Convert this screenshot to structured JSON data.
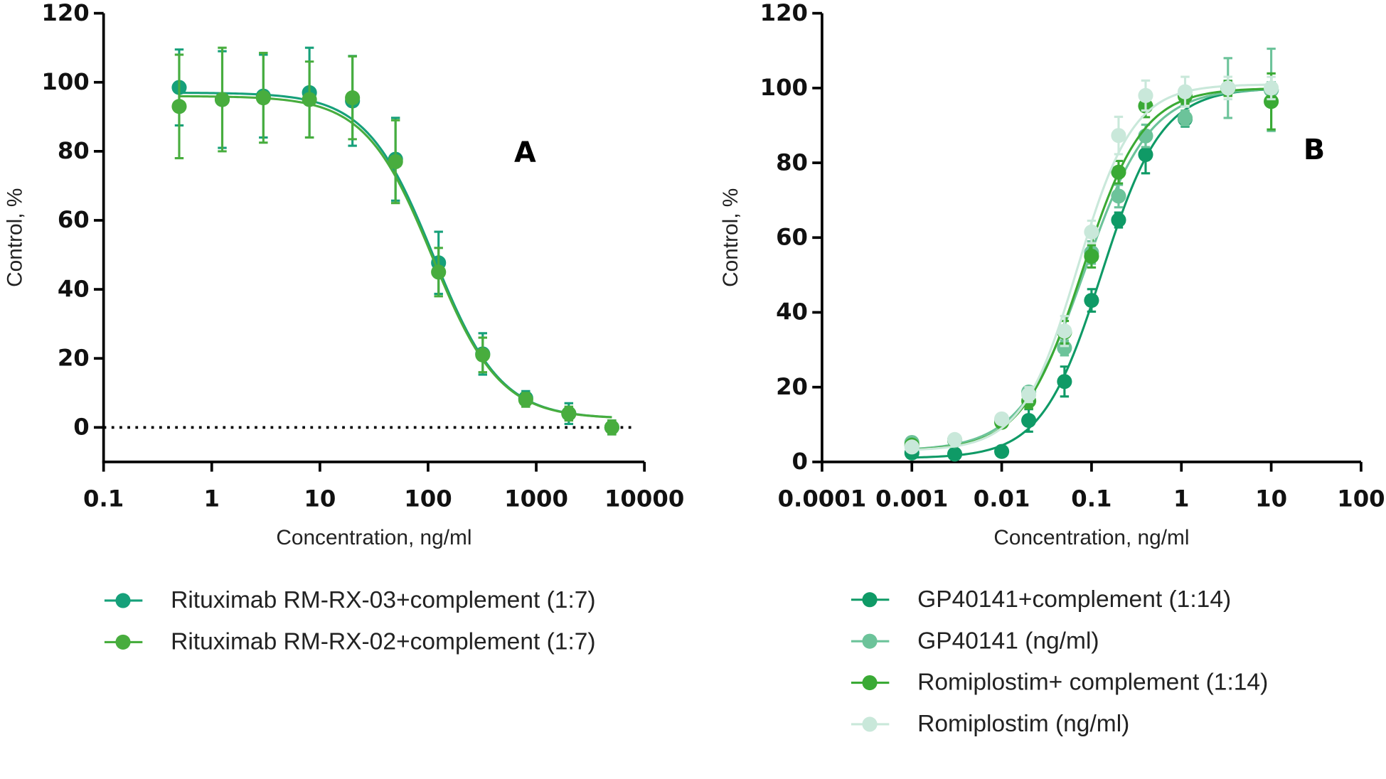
{
  "chart_data": [
    {
      "type": "scatter",
      "annotation": "A",
      "x_label": "Concentration, ng/ml",
      "y_label": "Control,  %",
      "xscale": "log",
      "xlim": [
        0.1,
        10000
      ],
      "xticks": [
        0.1,
        1,
        10,
        100,
        1000,
        10000
      ],
      "ylim": [
        -10,
        120
      ],
      "yticks": [
        0,
        20,
        40,
        60,
        80,
        100,
        120
      ],
      "reference_line": 0,
      "legend": "bottom",
      "x": [
        0.5,
        1.25,
        3,
        8,
        20,
        50,
        125,
        320,
        800,
        2000,
        5000
      ],
      "series": [
        {
          "name": "Rituximab RM-RX-03+complement (1:7)",
          "color": "#16a07a",
          "values": [
            98.5,
            95,
            96,
            97,
            94.6,
            77.7,
            47.7,
            21.3,
            8.5,
            4,
            0
          ],
          "errors": [
            11,
            14,
            12,
            13,
            13,
            12,
            9,
            6,
            2,
            3,
            2
          ],
          "fit": {
            "bottom": 2.5,
            "top": 97,
            "ec50": 112,
            "hill": 1.4
          }
        },
        {
          "name": "Rituximab RM-RX-02+complement (1:7)",
          "color": "#48ad3e",
          "values": [
            93,
            95,
            95.5,
            95,
            95.5,
            77,
            45,
            21,
            8,
            4,
            0
          ],
          "errors": [
            15,
            15,
            13,
            11,
            12,
            12,
            7,
            5,
            2,
            2,
            2
          ],
          "fit": {
            "bottom": 2.5,
            "top": 96,
            "ec50": 110,
            "hill": 1.4
          }
        }
      ]
    },
    {
      "type": "scatter",
      "annotation": "B",
      "x_label": "Concentration, ng/ml",
      "y_label": "Control,  %",
      "xscale": "log",
      "xlim": [
        0.0001,
        100
      ],
      "xticks": [
        0.0001,
        0.001,
        0.01,
        0.1,
        1,
        10,
        100
      ],
      "ylim": [
        0,
        120
      ],
      "yticks": [
        0,
        20,
        40,
        60,
        80,
        100,
        120
      ],
      "legend": "bottom",
      "x": [
        0.001,
        0.003,
        0.01,
        0.02,
        0.05,
        0.1,
        0.2,
        0.4,
        1.1,
        3.3,
        10
      ],
      "series": [
        {
          "name": "GP40141+complement (1:14)",
          "color": "#0f9a66",
          "values": [
            2.4,
            2.1,
            2.8,
            11.1,
            21.5,
            43.2,
            64.7,
            82.2,
            91.7,
            99.9,
            99.5
          ],
          "errors": [
            1,
            1,
            1,
            3,
            4,
            3,
            2,
            5,
            2,
            2,
            2
          ],
          "fit": {
            "bottom": 1,
            "top": 100,
            "ec50": 0.13,
            "hill": -1.3
          }
        },
        {
          "name": "GP40141 (ng/ml)",
          "color": "#6cc39a",
          "values": [
            5.2,
            5.7,
            11.1,
            18.7,
            30.5,
            56,
            71.1,
            87.2,
            92,
            100,
            99.5
          ],
          "errors": [
            1,
            1,
            1,
            1,
            2,
            3,
            3,
            3,
            2,
            8,
            11
          ],
          "fit": {
            "bottom": 3,
            "top": 100,
            "ec50": 0.085,
            "hill": -1.2
          }
        },
        {
          "name": "Romiplostim+ complement (1:14)",
          "color": "#3aaa35",
          "values": [
            4.5,
            5.9,
            10.6,
            16.3,
            34.7,
            55,
            77.5,
            95.2,
            97.8,
            99.9,
            96.4
          ],
          "errors": [
            1,
            1,
            1,
            2,
            3,
            3,
            3,
            3,
            2,
            2,
            7.5
          ],
          "fit": {
            "bottom": 3,
            "top": 100,
            "ec50": 0.08,
            "hill": -1.3
          }
        },
        {
          "name": "Romiplostim (ng/ml)",
          "color": "#c9e8da",
          "values": [
            4,
            6,
            11.5,
            18,
            35,
            61.5,
            87.3,
            98,
            99,
            100,
            100
          ],
          "errors": [
            1,
            1,
            1,
            2,
            4,
            3,
            5,
            4,
            4,
            3,
            3
          ],
          "fit": {
            "bottom": 3,
            "top": 101,
            "ec50": 0.07,
            "hill": -1.4
          }
        }
      ]
    }
  ]
}
